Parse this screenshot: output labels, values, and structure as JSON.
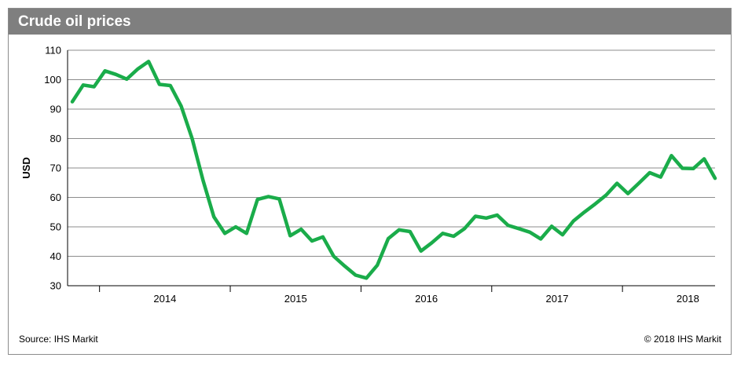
{
  "header": {
    "title": "Crude oil prices"
  },
  "footer": {
    "source": "Source: IHS Markit",
    "copyright": "© 2018 IHS Markit"
  },
  "colors": {
    "line": "#1aac4a",
    "grid": "#8c8c8c",
    "header_bg": "#7f7f7f"
  },
  "chart_data": {
    "type": "line",
    "title": "Crude oil prices",
    "ylabel": "USD",
    "xlabel": "",
    "ylim": [
      30,
      110
    ],
    "yticks": [
      30,
      40,
      50,
      60,
      70,
      80,
      90,
      100,
      110
    ],
    "xlim": [
      "2013-10",
      "2018-09"
    ],
    "xtick_labels": [
      "2014",
      "2015",
      "2016",
      "2017",
      "2018"
    ],
    "grid": true,
    "series": [
      {
        "x": [
          "2013-10",
          "2013-11",
          "2013-12",
          "2014-01",
          "2014-02",
          "2014-03",
          "2014-04",
          "2014-05",
          "2014-06",
          "2014-07",
          "2014-08",
          "2014-09",
          "2014-10",
          "2014-11",
          "2014-12",
          "2015-01",
          "2015-02",
          "2015-03",
          "2015-04",
          "2015-05",
          "2015-06",
          "2015-07",
          "2015-08",
          "2015-09",
          "2015-10",
          "2015-11",
          "2015-12",
          "2016-01",
          "2016-02",
          "2016-03",
          "2016-04",
          "2016-05",
          "2016-06",
          "2016-07",
          "2016-08",
          "2016-09",
          "2016-10",
          "2016-11",
          "2016-12",
          "2017-01",
          "2017-02",
          "2017-03",
          "2017-04",
          "2017-05",
          "2017-06",
          "2017-07",
          "2017-08",
          "2017-09",
          "2017-10",
          "2017-11",
          "2017-12",
          "2018-01",
          "2018-02",
          "2018-03",
          "2018-04",
          "2018-05",
          "2018-06",
          "2018-07",
          "2018-08",
          "2018-09"
        ],
        "values": [
          92.5,
          98.2,
          97.6,
          103.0,
          101.8,
          100.2,
          103.6,
          106.2,
          98.4,
          98.0,
          91.0,
          80.0,
          65.8,
          53.4,
          47.8,
          50.0,
          47.8,
          59.3,
          60.3,
          59.5,
          47.0,
          49.2,
          45.2,
          46.6,
          40.0,
          36.7,
          33.6,
          32.6,
          37.0,
          46.0,
          49.0,
          48.4,
          41.8,
          44.6,
          47.8,
          46.8,
          49.4,
          53.6,
          53.0,
          54.0,
          50.5,
          49.4,
          48.2,
          45.9,
          50.2,
          47.3,
          52.0,
          55.0,
          57.8,
          60.8,
          64.8,
          61.3,
          64.8,
          68.4,
          66.9,
          74.2,
          69.9,
          69.8,
          73.1,
          66.5
        ]
      }
    ]
  }
}
